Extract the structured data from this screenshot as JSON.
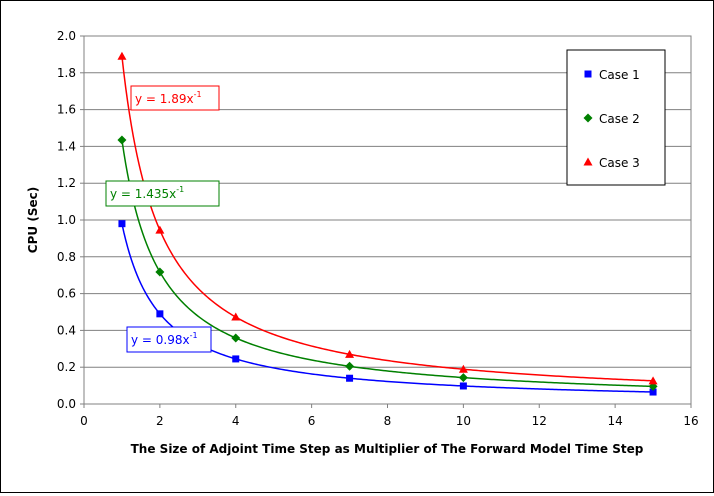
{
  "chart_data": {
    "type": "scatter",
    "xlabel": "The Size of Adjoint Time Step as Multiplier of The Forward Model Time Step",
    "ylabel": "CPU (Sec)",
    "xlim": [
      0,
      16
    ],
    "ylim": [
      0,
      2.0
    ],
    "xticks": [
      0,
      2,
      4,
      6,
      8,
      10,
      12,
      14,
      16
    ],
    "yticks": [
      "0.0",
      "0.2",
      "0.4",
      "0.6",
      "0.8",
      "1.0",
      "1.2",
      "1.4",
      "1.6",
      "1.8",
      "2.0"
    ],
    "grid": "horizontal",
    "legend_position": "top-right",
    "series": [
      {
        "name": "Case 1",
        "color": "#0000ff",
        "marker": "square",
        "x": [
          1,
          2,
          4,
          7,
          10,
          15
        ],
        "y": [
          0.98,
          0.49,
          0.245,
          0.14,
          0.098,
          0.065
        ],
        "trendline": {
          "a": 0.98,
          "power": -1,
          "label": "y = 0.98x",
          "exp": "-1"
        }
      },
      {
        "name": "Case 2",
        "color": "#008000",
        "marker": "diamond",
        "x": [
          1,
          2,
          4,
          7,
          10,
          15
        ],
        "y": [
          1.435,
          0.7175,
          0.359,
          0.205,
          0.1435,
          0.0957
        ],
        "trendline": {
          "a": 1.435,
          "power": -1,
          "label": "y = 1.435x",
          "exp": "-1"
        }
      },
      {
        "name": "Case 3",
        "color": "#ff0000",
        "marker": "triangle",
        "x": [
          1,
          2,
          4,
          7,
          10,
          15
        ],
        "y": [
          1.89,
          0.945,
          0.4725,
          0.27,
          0.189,
          0.126
        ],
        "trendline": {
          "a": 1.89,
          "power": -1,
          "label": "y = 1.89x",
          "exp": "-1"
        }
      }
    ]
  }
}
